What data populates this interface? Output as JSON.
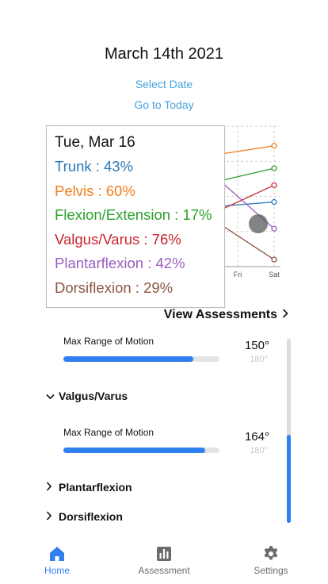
{
  "header": {
    "date": "March 14th 2021",
    "select_date": "Select Date",
    "go_to_today": "Go to Today"
  },
  "chart_data": {
    "type": "line",
    "categories": [
      "Fri",
      "Sat"
    ],
    "series": [
      {
        "name": "Trunk",
        "values": [
          44,
          46
        ],
        "color": "#2f78b5"
      },
      {
        "name": "Pelvis",
        "values": [
          82,
          86
        ],
        "color": "#f07f1a"
      },
      {
        "name": "Flexion/Extension",
        "values": [
          64,
          70
        ],
        "color": "#2ca02c"
      },
      {
        "name": "Valgus/Varus",
        "values": [
          46,
          58
        ],
        "color": "#c8262e"
      },
      {
        "name": "Plantarflexion",
        "values": [
          50,
          27
        ],
        "color": "#9b5fc0"
      },
      {
        "name": "Dorsiflexion",
        "values": [
          22,
          5
        ],
        "color": "#8b5642"
      }
    ],
    "ylim": [
      0,
      100
    ]
  },
  "tooltip": {
    "title": "Tue, Mar 16",
    "rows": [
      {
        "text": "Trunk : 43%",
        "color": "#2f78b5"
      },
      {
        "text": "Pelvis : 60%",
        "color": "#f07f1a"
      },
      {
        "text": "Flexion/Extension : 17%",
        "color": "#2ca02c"
      },
      {
        "text": "Valgus/Varus : 76%",
        "color": "#c8262e"
      },
      {
        "text": "Plantarflexion : 42%",
        "color": "#9b5fc0"
      },
      {
        "text": "Dorsiflexion : 29%",
        "color": "#8b5642"
      }
    ]
  },
  "view_assessments": "View Assessments",
  "list": {
    "rom1": {
      "label": "Max Range of Motion",
      "value": "150°",
      "max": "180°",
      "fraction": 0.833
    },
    "section_valgus": "Valgus/Varus",
    "rom2": {
      "label": "Max Range of Motion",
      "value": "164°",
      "max": "180°",
      "fraction": 0.911
    },
    "section_plantar": "Plantarflexion",
    "section_dorsi": "Dorsiflexion"
  },
  "scrollbar": {
    "thumb_fraction": 0.48
  },
  "tabs": {
    "home": "Home",
    "assessment": "Assessment",
    "settings": "Settings"
  },
  "colors": {
    "accent": "#2f7ff0",
    "link": "#4aa3e0"
  }
}
